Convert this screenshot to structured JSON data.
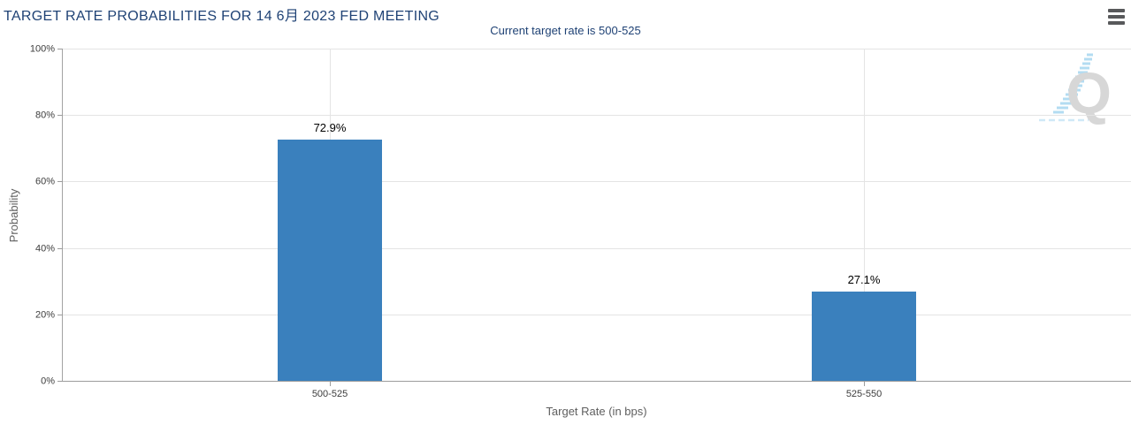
{
  "header": {
    "title": "TARGET RATE PROBABILITIES FOR 14 6月 2023 FED MEETING",
    "subtitle": "Current target rate is 500-525"
  },
  "menu": {
    "icon": "hamburger-icon"
  },
  "watermark": {
    "letter": "Q"
  },
  "chart_data": {
    "type": "bar",
    "title": "TARGET RATE PROBABILITIES FOR 14 6月 2023 FED MEETING",
    "subtitle": "Current target rate is 500-525",
    "categories": [
      "500-525",
      "525-550"
    ],
    "values": [
      72.9,
      27.1
    ],
    "value_labels": [
      "72.9%",
      "27.1%"
    ],
    "xlabel": "Target Rate (in bps)",
    "ylabel": "Probability",
    "ylim": [
      0,
      100
    ],
    "ytick_labels": [
      "0%",
      "20%",
      "40%",
      "60%",
      "80%",
      "100%"
    ],
    "grid": true,
    "legend": false,
    "bar_color": "#3a80bd",
    "colors": {
      "title": "#1f4275",
      "grid": "#e4e4e4",
      "axis": "#9c9c9c",
      "tick_text": "#3c3c3c",
      "axis_title_text": "#5f5f5f"
    }
  }
}
